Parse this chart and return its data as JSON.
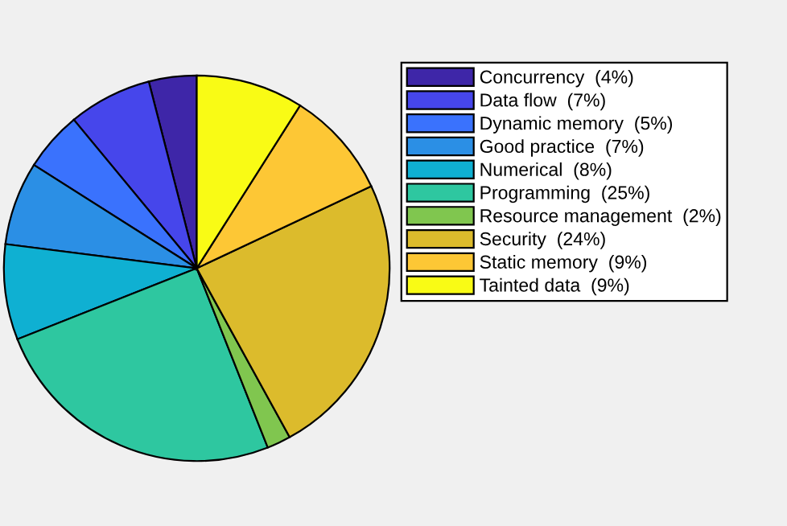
{
  "chart_data": {
    "type": "pie",
    "categories": [
      "Concurrency  (4%)",
      "Data flow  (7%)",
      "Dynamic memory  (5%)",
      "Good practice  (7%)",
      "Numerical  (8%)",
      "Programming  (25%)",
      "Resource management  (2%)",
      "Security  (24%)",
      "Static memory  (9%)",
      "Tainted data  (9%)"
    ],
    "values": [
      4,
      7,
      5,
      7,
      8,
      25,
      2,
      24,
      9,
      9
    ],
    "colors": [
      "#3e26a8",
      "#4646eb",
      "#3a72fd",
      "#2b8fe5",
      "#0fb0d2",
      "#2ec7a0",
      "#80c64f",
      "#dcbb2c",
      "#fdc735",
      "#f9fb15"
    ],
    "legend": "right"
  }
}
